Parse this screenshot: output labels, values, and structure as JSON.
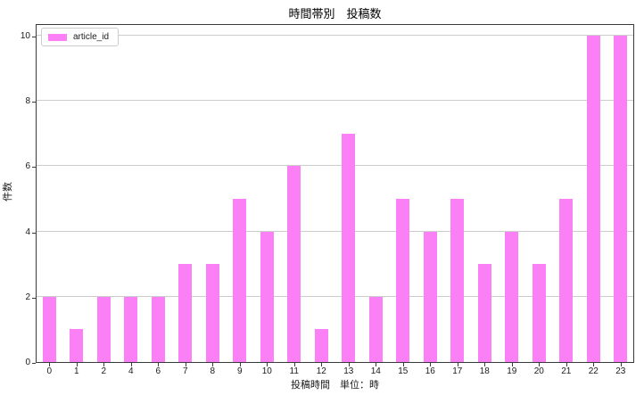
{
  "title": "時間帯別　投稿数",
  "legend": {
    "label": "article_id"
  },
  "chart_data": {
    "type": "bar",
    "title": "時間帯別　投稿数",
    "categories": [
      "0",
      "1",
      "2",
      "4",
      "6",
      "7",
      "8",
      "9",
      "10",
      "11",
      "12",
      "13",
      "14",
      "15",
      "16",
      "17",
      "18",
      "19",
      "20",
      "21",
      "22",
      "23"
    ],
    "values": [
      2,
      1,
      2,
      2,
      2,
      3,
      3,
      5,
      4,
      6,
      1,
      7,
      2,
      5,
      4,
      5,
      3,
      4,
      3,
      5,
      10,
      10
    ],
    "series_name": "article_id",
    "xlabel": "投稿時間　単位：時",
    "ylabel": "件数",
    "ylim": [
      0,
      10.4
    ],
    "yticks": [
      0,
      2,
      4,
      6,
      8,
      10
    ],
    "grid": "horizontal",
    "legend_position": "upper left",
    "colors": {
      "bar": "#FB80F5",
      "grid": "#CCCCCC",
      "spine": "#3A3A3A",
      "text": "#1A1A1A",
      "legend_border": "#CCCCCC",
      "background": "#FFFFFF"
    }
  }
}
